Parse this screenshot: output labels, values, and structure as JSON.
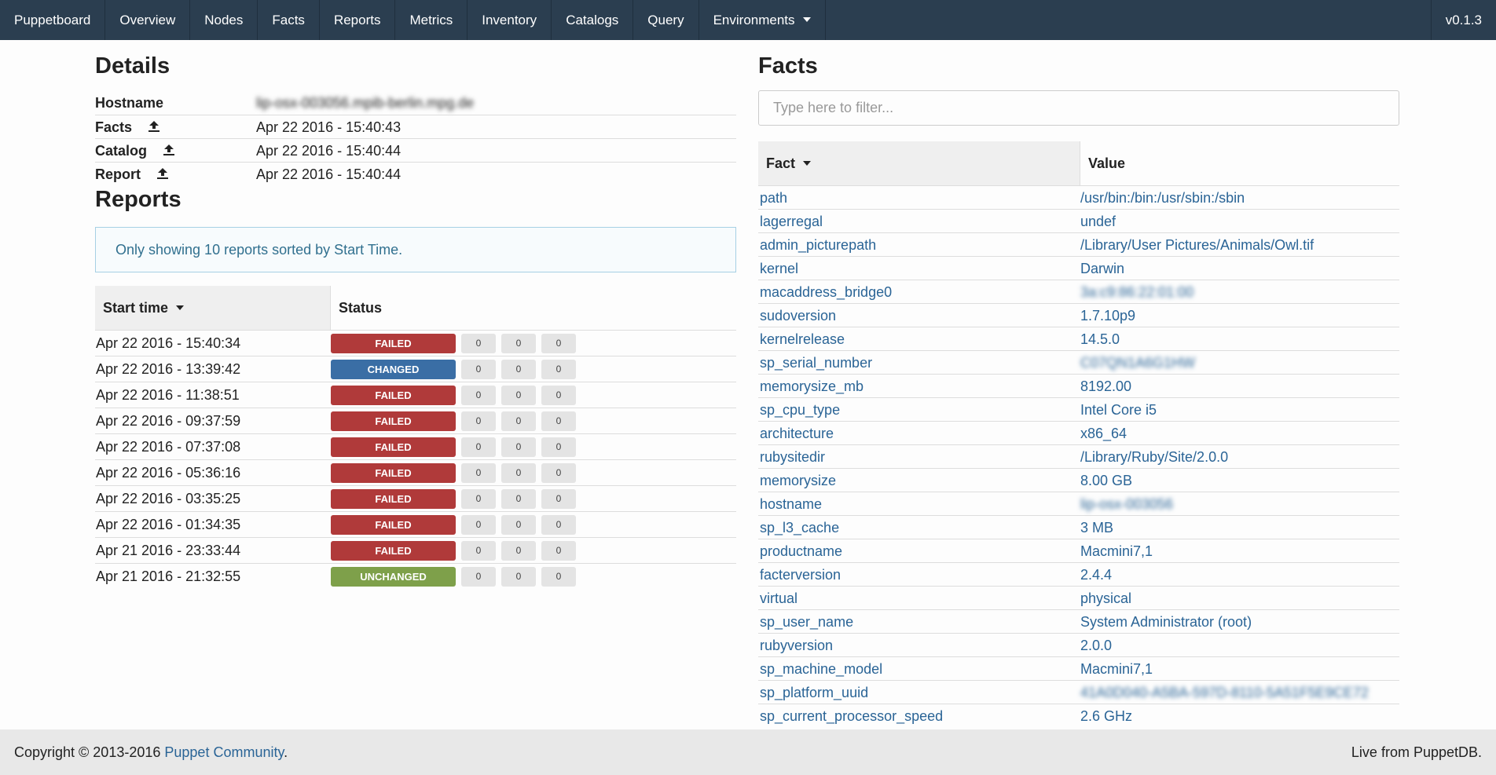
{
  "nav": {
    "brand": "Puppetboard",
    "items": [
      "Overview",
      "Nodes",
      "Facts",
      "Reports",
      "Metrics",
      "Inventory",
      "Catalogs",
      "Query",
      "Environments"
    ],
    "version": "v0.1.3"
  },
  "details": {
    "title": "Details",
    "rows": [
      {
        "label": "Hostname",
        "value": "lip-osx-003056.mpib-berlin.mpg.de"
      },
      {
        "label": "Facts",
        "value": "Apr 22 2016 - 15:40:43"
      },
      {
        "label": "Catalog",
        "value": "Apr 22 2016 - 15:40:44"
      },
      {
        "label": "Report",
        "value": "Apr 22 2016 - 15:40:44"
      }
    ]
  },
  "reports": {
    "title": "Reports",
    "notice": "Only showing 10 reports sorted by Start Time.",
    "columns": [
      "Start time",
      "Status"
    ],
    "rows": [
      {
        "start": "Apr 22 2016 - 15:40:34",
        "status": "FAILED",
        "counts": [
          0,
          0,
          0
        ]
      },
      {
        "start": "Apr 22 2016 - 13:39:42",
        "status": "CHANGED",
        "counts": [
          0,
          0,
          0
        ]
      },
      {
        "start": "Apr 22 2016 - 11:38:51",
        "status": "FAILED",
        "counts": [
          0,
          0,
          0
        ]
      },
      {
        "start": "Apr 22 2016 - 09:37:59",
        "status": "FAILED",
        "counts": [
          0,
          0,
          0
        ]
      },
      {
        "start": "Apr 22 2016 - 07:37:08",
        "status": "FAILED",
        "counts": [
          0,
          0,
          0
        ]
      },
      {
        "start": "Apr 22 2016 - 05:36:16",
        "status": "FAILED",
        "counts": [
          0,
          0,
          0
        ]
      },
      {
        "start": "Apr 22 2016 - 03:35:25",
        "status": "FAILED",
        "counts": [
          0,
          0,
          0
        ]
      },
      {
        "start": "Apr 22 2016 - 01:34:35",
        "status": "FAILED",
        "counts": [
          0,
          0,
          0
        ]
      },
      {
        "start": "Apr 21 2016 - 23:33:44",
        "status": "FAILED",
        "counts": [
          0,
          0,
          0
        ]
      },
      {
        "start": "Apr 21 2016 - 21:32:55",
        "status": "UNCHANGED",
        "counts": [
          0,
          0,
          0
        ]
      }
    ]
  },
  "facts": {
    "title": "Facts",
    "filter_placeholder": "Type here to filter...",
    "columns": [
      "Fact",
      "Value"
    ],
    "rows": [
      [
        "path",
        "/usr/bin:/bin:/usr/sbin:/sbin"
      ],
      [
        "lagerregal",
        "undef"
      ],
      [
        "admin_picturepath",
        "/Library/User Pictures/Animals/Owl.tif"
      ],
      [
        "kernel",
        "Darwin"
      ],
      [
        "macaddress_bridge0",
        "3a:c9:86:22:01:00"
      ],
      [
        "sudoversion",
        "1.7.10p9"
      ],
      [
        "kernelrelease",
        "14.5.0"
      ],
      [
        "sp_serial_number",
        "C07QN1A6G1HW"
      ],
      [
        "memorysize_mb",
        "8192.00"
      ],
      [
        "sp_cpu_type",
        "Intel Core i5"
      ],
      [
        "architecture",
        "x86_64"
      ],
      [
        "rubysitedir",
        "/Library/Ruby/Site/2.0.0"
      ],
      [
        "memorysize",
        "8.00 GB"
      ],
      [
        "hostname",
        "lip-osx-003056"
      ],
      [
        "sp_l3_cache",
        "3 MB"
      ],
      [
        "productname",
        "Macmini7,1"
      ],
      [
        "facterversion",
        "2.4.4"
      ],
      [
        "virtual",
        "physical"
      ],
      [
        "sp_user_name",
        "System Administrator (root)"
      ],
      [
        "rubyversion",
        "2.0.0"
      ],
      [
        "sp_machine_model",
        "Macmini7,1"
      ],
      [
        "sp_platform_uuid",
        "41A0D040-A5BA-597D-8110-5A51F5E9CE72"
      ],
      [
        "sp_current_processor_speed",
        "2.6 GHz"
      ]
    ]
  },
  "footer": {
    "copyright": "Copyright © 2013-2016 ",
    "link": "Puppet Community",
    "period": ".",
    "right": "Live from PuppetDB."
  }
}
